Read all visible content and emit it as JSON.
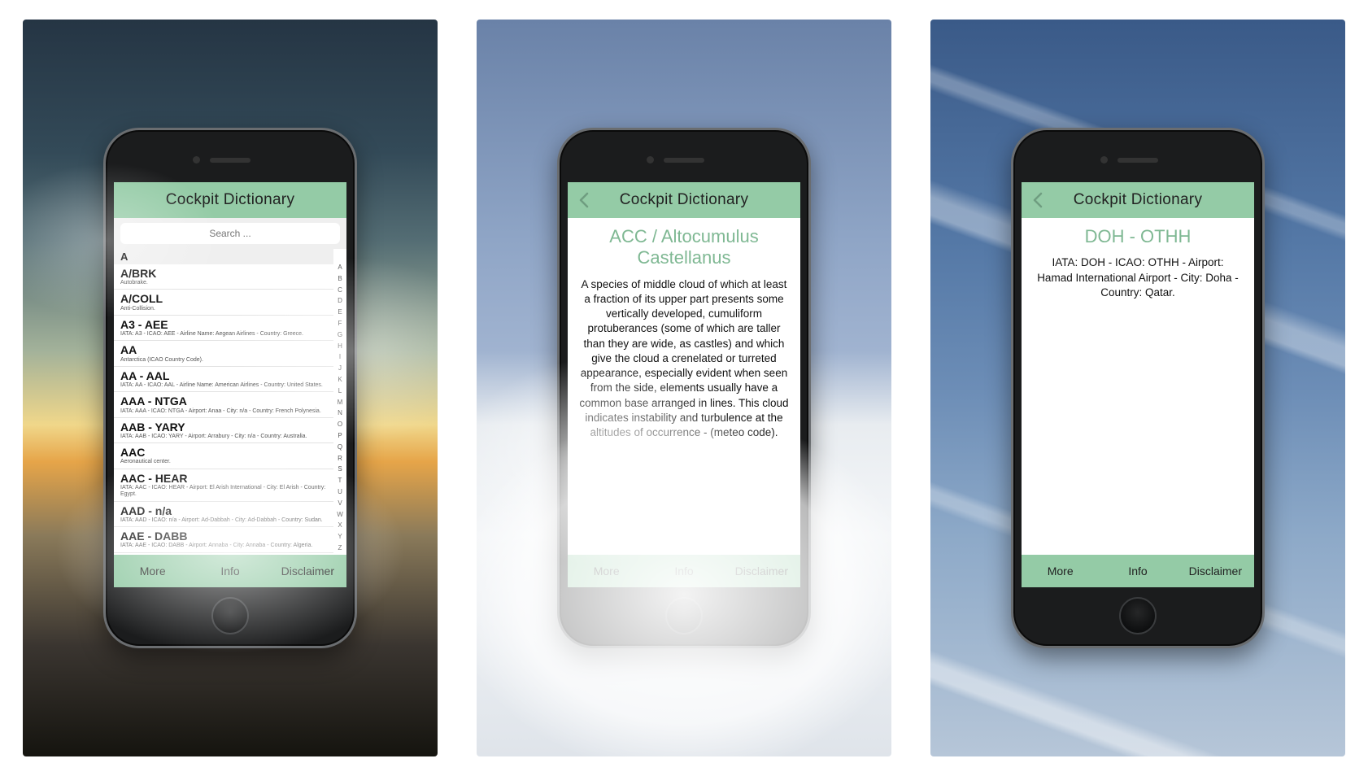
{
  "colors": {
    "accent": "#94cba6",
    "title_text": "#222222",
    "detail_title": "#7fb893",
    "body_text": "#111111",
    "entry_sub": "#555555",
    "search_placeholder": "#999999",
    "divider": "#e2e2e2",
    "phone_body": "#1b1c1d",
    "phone_border": "#6a6d70"
  },
  "app_title": "Cockpit Dictionary",
  "footer": {
    "more": "More",
    "info": "Info",
    "disclaimer": "Disclaimer"
  },
  "screen1": {
    "search_placeholder": "Search ...",
    "section": "A",
    "index_letters": [
      "A",
      "B",
      "C",
      "D",
      "E",
      "F",
      "G",
      "H",
      "I",
      "J",
      "K",
      "L",
      "M",
      "N",
      "O",
      "P",
      "Q",
      "R",
      "S",
      "T",
      "U",
      "V",
      "W",
      "X",
      "Y",
      "Z"
    ],
    "entries": [
      {
        "term": "A/BRK",
        "sub": "Autobrake."
      },
      {
        "term": "A/COLL",
        "sub": "Anti-Collision."
      },
      {
        "term": "A3 - AEE",
        "sub": "IATA: A3 - ICAO: AEE - Airline Name: Aegean Airlines - Country: Greece."
      },
      {
        "term": "AA",
        "sub": "Antarctica (ICAO Country Code)."
      },
      {
        "term": "AA - AAL",
        "sub": "IATA: AA - ICAO: AAL - Airline Name: American Airlines - Country: United States."
      },
      {
        "term": "AAA - NTGA",
        "sub": "IATA: AAA - ICAO: NTGA - Airport: Anaa - City: n/a - Country: French Polynesia."
      },
      {
        "term": "AAB - YARY",
        "sub": "IATA: AAB - ICAO: YARY - Airport: Arrabury - City: n/a - Country: Australia."
      },
      {
        "term": "AAC",
        "sub": "Aeronautical center."
      },
      {
        "term": "AAC - HEAR",
        "sub": "IATA: AAC - ICAO: HEAR - Airport: El Arish International - City: El Arish - Country: Egypt."
      },
      {
        "term": "AAD - n/a",
        "sub": "IATA: AAD - ICAO: n/a - Airport: Ad-Dabbah - City: Ad-Dabbah - Country: Sudan."
      },
      {
        "term": "AAE - DABB",
        "sub": "IATA: AAE - ICAO: DABB - Airport: Annaba - City: Annaba - Country: Algeria."
      }
    ]
  },
  "screen2": {
    "title": "ACC / Altocumulus Castellanus",
    "body": "A species of middle cloud of which at least a fraction of its upper part presents some vertically developed, cumuliform protuberances (some of which are taller than they are wide, as castles) and which give the cloud a crenelated or turreted appearance, especially evident when seen from the side, elements usually have a common base arranged in lines. This cloud indicates instability and turbulence at the altitudes of occurrence - (meteo code)."
  },
  "screen3": {
    "title": "DOH - OTHH",
    "body": "IATA: DOH - ICAO: OTHH - Airport: Hamad International Airport - City: Doha - Country: Qatar."
  }
}
